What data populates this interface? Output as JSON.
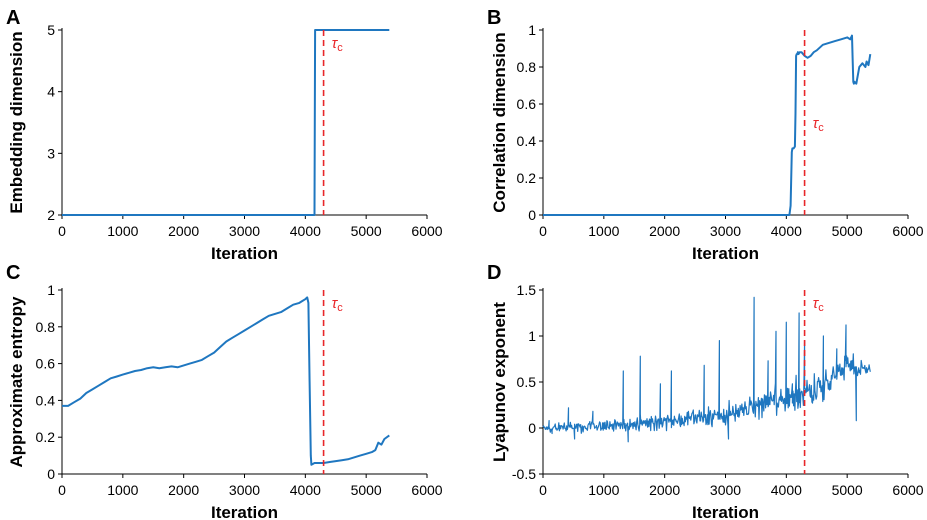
{
  "colors": {
    "line": "#1f77c0",
    "threshold": "#e8262a",
    "axis": "#000000"
  },
  "chart_data": [
    {
      "panel": "A",
      "type": "line",
      "xlabel": "Iteration",
      "ylabel": "Embedding dimension",
      "xlim": [
        0,
        6000
      ],
      "ylim": [
        2,
        5
      ],
      "xticks": [
        0,
        1000,
        2000,
        3000,
        4000,
        5000,
        6000
      ],
      "yticks": [
        2,
        3,
        4,
        5
      ],
      "threshold": {
        "x": 4300,
        "label": "τ",
        "sub": "c"
      },
      "series": [
        {
          "name": "Embedding dimension",
          "style": "smooth",
          "x": [
            0,
            4150,
            4150,
            4160,
            4165,
            5380
          ],
          "y": [
            2,
            2,
            2.05,
            5,
            5,
            5
          ]
        }
      ]
    },
    {
      "panel": "B",
      "type": "line",
      "xlabel": "Iteration",
      "ylabel": "Correlation dimension",
      "xlim": [
        0,
        6000
      ],
      "ylim": [
        0,
        1
      ],
      "xticks": [
        0,
        1000,
        2000,
        3000,
        4000,
        5000,
        6000
      ],
      "yticks": [
        0,
        0.2,
        0.4,
        0.6,
        0.8,
        1
      ],
      "threshold": {
        "x": 4300,
        "label": "τ",
        "sub": "c"
      },
      "series": [
        {
          "name": "Correlation dimension",
          "style": "smooth",
          "x": [
            0,
            4050,
            4070,
            4090,
            4100,
            4120,
            4140,
            4150,
            4160,
            4170,
            4180,
            4190,
            4200,
            4220,
            4250,
            4300,
            4350,
            4400,
            4450,
            4500,
            4600,
            4700,
            4800,
            4900,
            5000,
            5050,
            5080,
            5090,
            5100,
            5110,
            5120,
            5150,
            5200,
            5250,
            5300,
            5320,
            5350,
            5380
          ],
          "y": [
            0,
            0,
            0.05,
            0.34,
            0.36,
            0.36,
            0.37,
            0.55,
            0.86,
            0.87,
            0.87,
            0.88,
            0.87,
            0.88,
            0.88,
            0.86,
            0.85,
            0.86,
            0.88,
            0.89,
            0.92,
            0.93,
            0.94,
            0.95,
            0.96,
            0.95,
            0.97,
            0.85,
            0.72,
            0.71,
            0.72,
            0.71,
            0.8,
            0.82,
            0.8,
            0.83,
            0.81,
            0.87
          ]
        }
      ]
    },
    {
      "panel": "C",
      "type": "line",
      "xlabel": "Iteration",
      "ylabel": "Approximate entropy",
      "xlim": [
        0,
        6000
      ],
      "ylim": [
        0,
        1
      ],
      "xticks": [
        0,
        1000,
        2000,
        3000,
        4000,
        5000,
        6000
      ],
      "yticks": [
        0,
        0.2,
        0.4,
        0.6,
        0.8,
        1
      ],
      "threshold": {
        "x": 4300,
        "label": "τ",
        "sub": "c"
      },
      "series": [
        {
          "name": "Approximate entropy",
          "style": "smooth",
          "x": [
            0,
            100,
            200,
            300,
            400,
            500,
            600,
            700,
            800,
            900,
            1000,
            1100,
            1200,
            1300,
            1400,
            1500,
            1600,
            1700,
            1800,
            1900,
            2000,
            2100,
            2200,
            2300,
            2400,
            2500,
            2600,
            2700,
            2800,
            2900,
            3000,
            3100,
            3200,
            3300,
            3400,
            3500,
            3600,
            3700,
            3800,
            3900,
            3950,
            4000,
            4030,
            4050,
            4070,
            4090,
            4100,
            4150,
            4200,
            4300,
            4400,
            4500,
            4600,
            4700,
            4800,
            4900,
            5000,
            5100,
            5150,
            5200,
            5250,
            5300,
            5380
          ],
          "y": [
            0.37,
            0.37,
            0.39,
            0.41,
            0.44,
            0.46,
            0.48,
            0.5,
            0.52,
            0.53,
            0.54,
            0.55,
            0.56,
            0.565,
            0.575,
            0.58,
            0.575,
            0.58,
            0.585,
            0.58,
            0.59,
            0.6,
            0.61,
            0.62,
            0.64,
            0.66,
            0.69,
            0.72,
            0.74,
            0.76,
            0.78,
            0.8,
            0.82,
            0.84,
            0.86,
            0.87,
            0.88,
            0.9,
            0.92,
            0.93,
            0.94,
            0.95,
            0.96,
            0.93,
            0.5,
            0.1,
            0.05,
            0.06,
            0.06,
            0.06,
            0.065,
            0.07,
            0.075,
            0.08,
            0.09,
            0.1,
            0.11,
            0.12,
            0.13,
            0.17,
            0.16,
            0.19,
            0.21
          ]
        }
      ]
    },
    {
      "panel": "D",
      "type": "line",
      "xlabel": "Iteration",
      "ylabel": "Lyapunov exponent",
      "xlim": [
        0,
        6000
      ],
      "ylim": [
        -0.5,
        1.5
      ],
      "xticks": [
        0,
        1000,
        2000,
        3000,
        4000,
        5000,
        6000
      ],
      "yticks": [
        -0.5,
        0,
        0.5,
        1,
        1.5
      ],
      "threshold": {
        "x": 4300,
        "label": "τ",
        "sub": "c"
      },
      "series": [
        {
          "name": "Lyapunov exponent",
          "style": "noisy",
          "x": [
            0,
            300,
            600,
            900,
            1200,
            1500,
            1800,
            2100,
            2400,
            2700,
            3000,
            3300,
            3600,
            3900,
            4200,
            4400,
            4600,
            4800,
            5000,
            5200,
            5380
          ],
          "y": [
            0,
            0.01,
            0.01,
            0.02,
            0.03,
            0.05,
            0.06,
            0.08,
            0.1,
            0.12,
            0.15,
            0.2,
            0.25,
            0.3,
            0.35,
            0.4,
            0.45,
            0.55,
            0.7,
            0.65,
            0.62
          ],
          "spread": [
            0.05,
            0.07,
            0.09,
            0.1,
            0.11,
            0.12,
            0.13,
            0.13,
            0.14,
            0.15,
            0.17,
            0.19,
            0.22,
            0.24,
            0.26,
            0.25,
            0.24,
            0.2,
            0.18,
            0.14,
            0.1
          ],
          "step": 10,
          "spikes": [
            {
              "x": 100,
              "y": 0.08
            },
            {
              "x": 150,
              "y": -0.06
            },
            {
              "x": 420,
              "y": 0.22
            },
            {
              "x": 520,
              "y": -0.12
            },
            {
              "x": 820,
              "y": 0.18
            },
            {
              "x": 1320,
              "y": 0.62
            },
            {
              "x": 1400,
              "y": -0.15
            },
            {
              "x": 1600,
              "y": 0.78
            },
            {
              "x": 1930,
              "y": 0.48
            },
            {
              "x": 2110,
              "y": 0.62
            },
            {
              "x": 2650,
              "y": 0.68
            },
            {
              "x": 2900,
              "y": 0.95
            },
            {
              "x": 3050,
              "y": -0.12
            },
            {
              "x": 3470,
              "y": 1.42
            },
            {
              "x": 3700,
              "y": 0.73
            },
            {
              "x": 3830,
              "y": 1.05
            },
            {
              "x": 4000,
              "y": 1.15
            },
            {
              "x": 4100,
              "y": 0.48
            },
            {
              "x": 4210,
              "y": 1.25
            },
            {
              "x": 4300,
              "y": 0.95
            },
            {
              "x": 4610,
              "y": 1.0
            },
            {
              "x": 4830,
              "y": 0.86
            },
            {
              "x": 4980,
              "y": 1.12
            },
            {
              "x": 5150,
              "y": 0.08
            }
          ]
        }
      ]
    }
  ]
}
